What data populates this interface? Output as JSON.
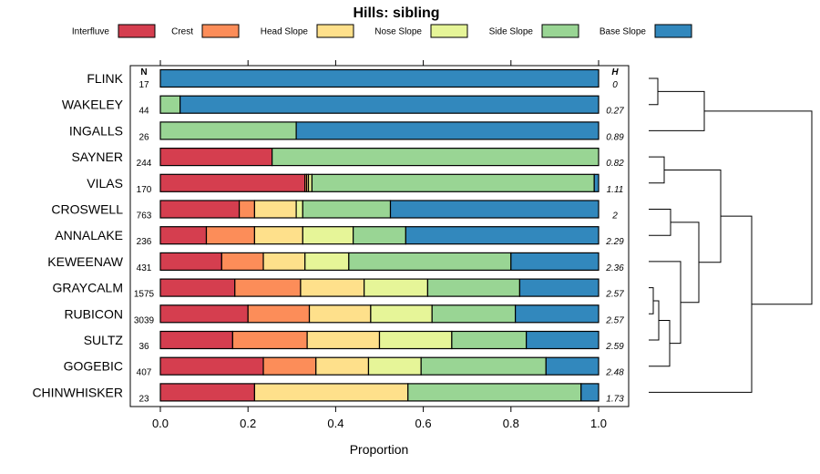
{
  "chart_data": {
    "type": "bar",
    "orientation": "horizontal",
    "stacked": true,
    "title": "Hills: sibling",
    "xlabel": "Proportion",
    "ylabel": "",
    "xlim": [
      0,
      1
    ],
    "x_ticks": [
      "0.0",
      "0.2",
      "0.4",
      "0.6",
      "0.8",
      "1.0"
    ],
    "n_header": "N",
    "h_header": "H",
    "legend_position": "top",
    "series": [
      {
        "name": "Interfluve",
        "color": "#D53E4F"
      },
      {
        "name": "Crest",
        "color": "#FC8D59"
      },
      {
        "name": "Head Slope",
        "color": "#FEE08B"
      },
      {
        "name": "Nose Slope",
        "color": "#E6F598"
      },
      {
        "name": "Side Slope",
        "color": "#99D594"
      },
      {
        "name": "Base Slope",
        "color": "#3288BD"
      }
    ],
    "rows": [
      {
        "name": "FLINK",
        "n": "17",
        "h": "0",
        "values": [
          0,
          0,
          0,
          0,
          0,
          1.0
        ]
      },
      {
        "name": "WAKELEY",
        "n": "44",
        "h": "0.27",
        "values": [
          0,
          0,
          0,
          0,
          0.045,
          0.955
        ]
      },
      {
        "name": "INGALLS",
        "n": "26",
        "h": "0.89",
        "values": [
          0,
          0,
          0,
          0,
          0.31,
          0.69
        ]
      },
      {
        "name": "SAYNER",
        "n": "244",
        "h": "0.82",
        "values": [
          0.255,
          0,
          0,
          0,
          0.745,
          0
        ]
      },
      {
        "name": "VILAS",
        "n": "170",
        "h": "1.11",
        "values": [
          0.33,
          0.004,
          0.004,
          0.008,
          0.644,
          0.01
        ]
      },
      {
        "name": "CROSWELL",
        "n": "763",
        "h": "2",
        "values": [
          0.18,
          0.035,
          0.095,
          0.015,
          0.2,
          0.475
        ]
      },
      {
        "name": "ANNALAKE",
        "n": "236",
        "h": "2.29",
        "values": [
          0.105,
          0.11,
          0.11,
          0.115,
          0.12,
          0.44
        ]
      },
      {
        "name": "KEWEENAW",
        "n": "431",
        "h": "2.36",
        "values": [
          0.14,
          0.095,
          0.095,
          0.1,
          0.37,
          0.2
        ]
      },
      {
        "name": "GRAYCALM",
        "n": "1575",
        "h": "2.57",
        "values": [
          0.17,
          0.15,
          0.145,
          0.145,
          0.21,
          0.18
        ]
      },
      {
        "name": "RUBICON",
        "n": "3039",
        "h": "2.57",
        "values": [
          0.2,
          0.14,
          0.14,
          0.14,
          0.19,
          0.19
        ]
      },
      {
        "name": "SULTZ",
        "n": "36",
        "h": "2.59",
        "values": [
          0.165,
          0.17,
          0.165,
          0.165,
          0.17,
          0.165
        ]
      },
      {
        "name": "GOGEBIC",
        "n": "407",
        "h": "2.48",
        "values": [
          0.235,
          0.12,
          0.12,
          0.12,
          0.285,
          0.12
        ]
      },
      {
        "name": "CHINWHISKER",
        "n": "23",
        "h": "1.73",
        "values": [
          0.215,
          0,
          0.35,
          0,
          0.395,
          0.04
        ]
      }
    ],
    "dendrogram": {
      "leaf_order": [
        "FLINK",
        "WAKELEY",
        "INGALLS",
        "SAYNER",
        "VILAS",
        "CROSWELL",
        "ANNALAKE",
        "KEWEENAW",
        "GRAYCALM",
        "RUBICON",
        "SULTZ",
        "GOGEBIC",
        "CHINWHISKER"
      ]
    }
  }
}
